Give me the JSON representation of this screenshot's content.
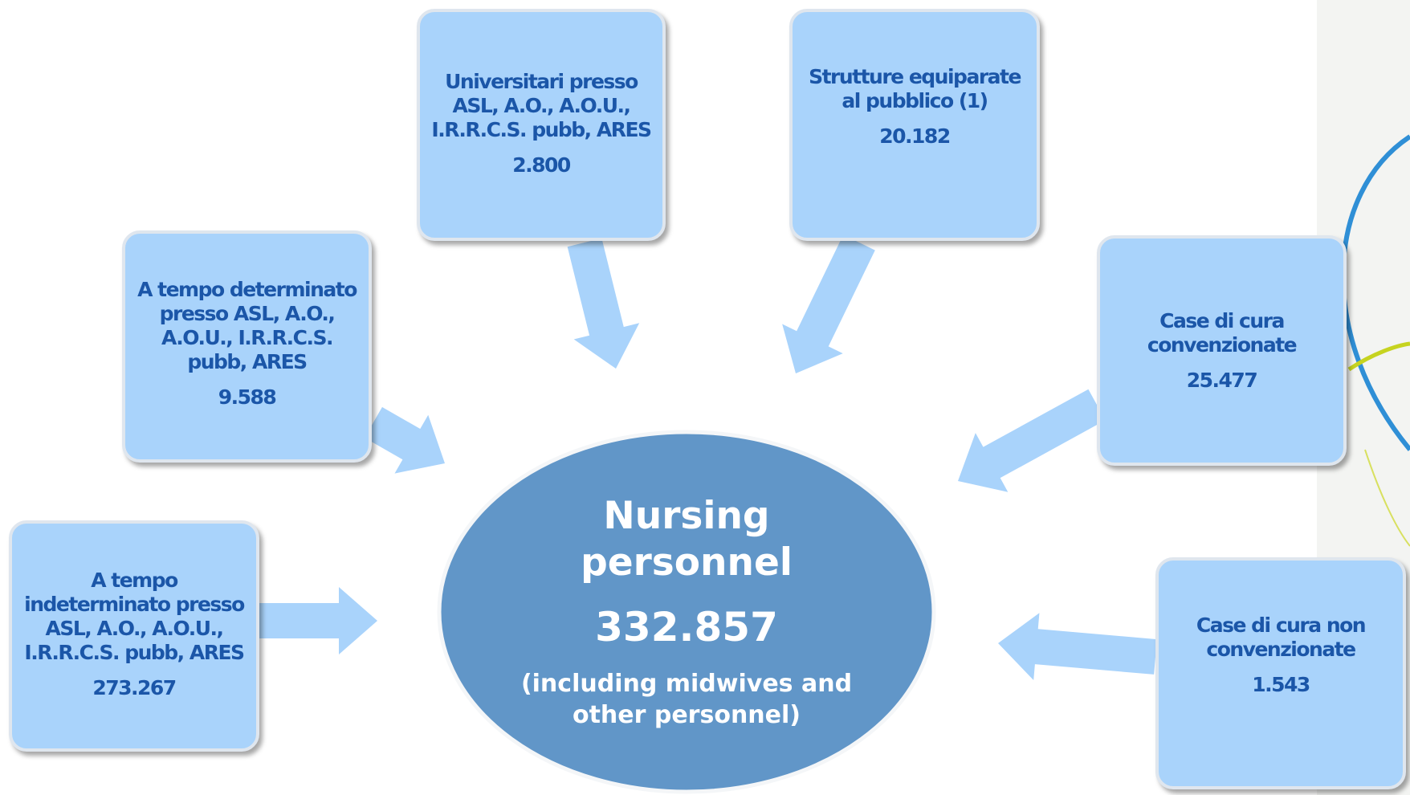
{
  "center": {
    "title": "Nursing personnel",
    "value": "332.857",
    "note": "(including midwives and other personnel)"
  },
  "nodes": [
    {
      "label": "Universitari presso ASL, A.O., A.O.U., I.R.R.C.S. pubb, ARES",
      "value": "2.800"
    },
    {
      "label": "Strutture equiparate al pubblico (1)",
      "value": "20.182"
    },
    {
      "label": "A tempo determinato presso ASL, A.O., A.O.U., I.R.R.C.S. pubb, ARES",
      "value": "9.588"
    },
    {
      "label": "Case di cura convenzionate",
      "value": "25.477"
    },
    {
      "label": "A tempo indeterminato presso ASL, A.O., A.O.U., I.R.R.C.S. pubb, ARES",
      "value": "273.267"
    },
    {
      "label": "Case di cura non convenzionate",
      "value": "1.543"
    }
  ]
}
